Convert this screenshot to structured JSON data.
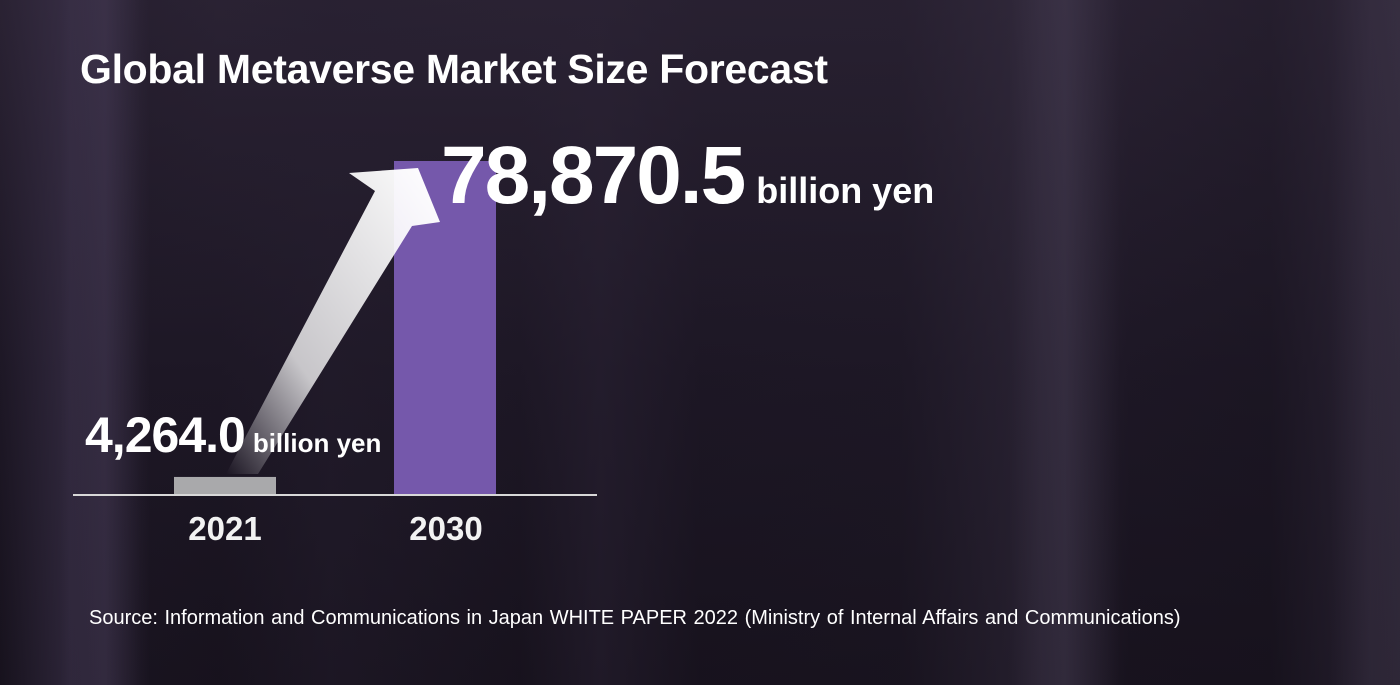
{
  "chart_data": {
    "type": "bar",
    "title": "Global Metaverse Market Size Forecast",
    "categories": [
      "2021",
      "2030"
    ],
    "values": [
      4264.0,
      78870.5
    ],
    "unit": "billion yen",
    "data_labels": [
      "4,264.0",
      "78,870.5"
    ],
    "bar_colors": [
      "#a9a9ab",
      "#7558ab"
    ],
    "axis_text_color": "#f2f2f2",
    "arrow": "growth-arrow",
    "ylim": [
      0,
      78870.5
    ],
    "grid": false
  },
  "source": "Source: Information and Communications in Japan WHITE PAPER 2022 (Ministry of Internal Affairs and Communications)"
}
